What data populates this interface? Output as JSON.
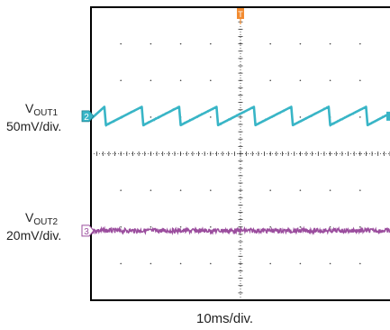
{
  "chart_data": {
    "type": "line",
    "grid": true,
    "divisions": {
      "x": 10,
      "y": 8
    },
    "xlabel": "10ms/div.",
    "time_per_div_ms": 10,
    "trigger_marker": "T",
    "series": [
      {
        "name": "VOUT1",
        "label_main": "V",
        "label_sub": "OUT1",
        "scale": "50mV/div.",
        "channel_marker": "2",
        "color": "#39b5c6",
        "waveform": "sawtooth ripple",
        "baseline_div": 3.0,
        "ripple_peak_to_peak_div": 0.55,
        "period_div": 1.25,
        "x_div": [
          0.0,
          0.45,
          0.5,
          1.7,
          1.75,
          2.95,
          3.0,
          4.2,
          4.25,
          5.45,
          5.5,
          6.7,
          6.75,
          7.95,
          8.0,
          9.2,
          9.25,
          10.0
        ],
        "y_div": [
          3.05,
          2.72,
          3.22,
          2.72,
          3.22,
          2.72,
          3.22,
          2.72,
          3.22,
          2.72,
          3.22,
          2.72,
          3.22,
          2.72,
          3.22,
          2.72,
          3.22,
          2.9
        ]
      },
      {
        "name": "VOUT2",
        "label_main": "V",
        "label_sub": "OUT2",
        "scale": "20mV/div.",
        "channel_marker": "3",
        "color": "#9b4e9e",
        "waveform": "flat with noise",
        "baseline_div": 6.1,
        "noise_peak_to_peak_div": 0.12
      }
    ]
  }
}
